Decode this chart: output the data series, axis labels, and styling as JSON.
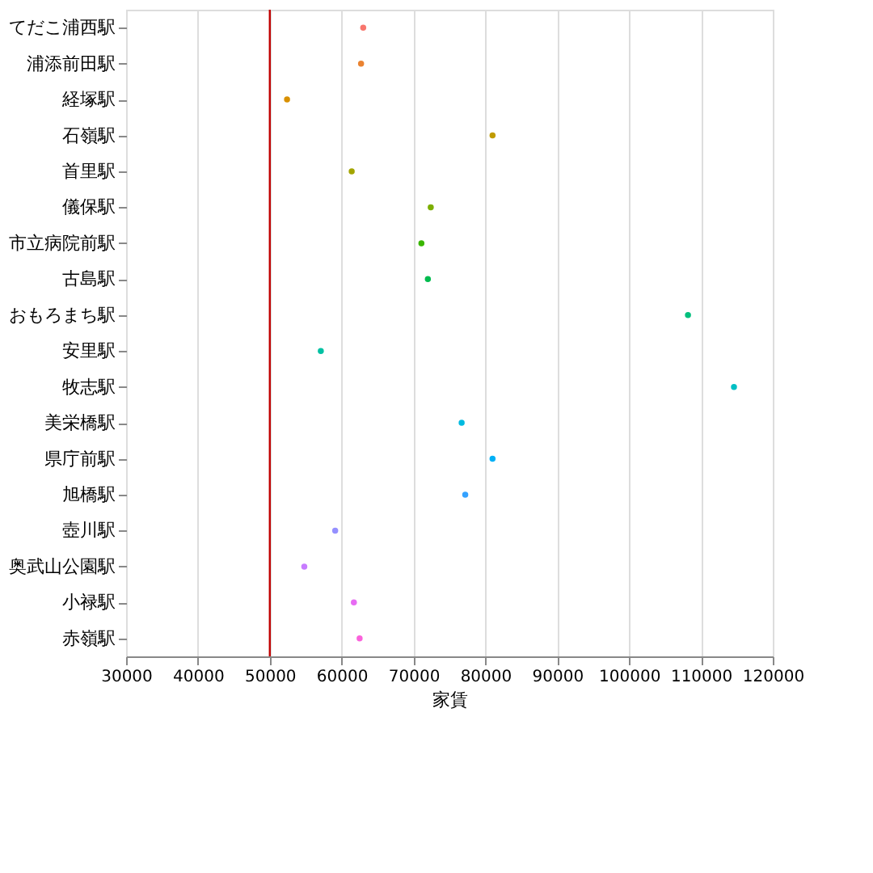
{
  "chart_data": {
    "type": "scatter",
    "xlabel": "家賃",
    "orientation": "horizontal",
    "categories": [
      "てだこ浦西駅",
      "浦添前田駅",
      "経塚駅",
      "石嶺駅",
      "首里駅",
      "儀保駅",
      "市立病院前駅",
      "古島駅",
      "おもろまち駅",
      "安里駅",
      "牧志駅",
      "美栄橋駅",
      "県庁前駅",
      "旭橋駅",
      "壺川駅",
      "奥武山公園駅",
      "小禄駅",
      "赤嶺駅"
    ],
    "values": [
      63000,
      62700,
      52400,
      81000,
      61400,
      72400,
      71100,
      72000,
      108200,
      57100,
      114600,
      76700,
      81000,
      77200,
      59100,
      54800,
      61700,
      62500
    ],
    "colors": [
      "#f8766d",
      "#ea8331",
      "#d89000",
      "#c09b00",
      "#a3a500",
      "#7cae00",
      "#39b600",
      "#00bb4e",
      "#00bf7d",
      "#00c1a3",
      "#00bfc4",
      "#00bae0",
      "#00b0f6",
      "#35a2ff",
      "#9590ff",
      "#c77cff",
      "#e76bf3",
      "#fa62db"
    ],
    "xlim": [
      30000,
      120000
    ],
    "xticks": [
      30000,
      40000,
      50000,
      60000,
      70000,
      80000,
      90000,
      100000,
      110000,
      120000
    ],
    "grid": "x",
    "marker": "circle",
    "ref_lines": [
      {
        "axis": "x",
        "value": 50000,
        "color": "#c00000"
      }
    ]
  }
}
